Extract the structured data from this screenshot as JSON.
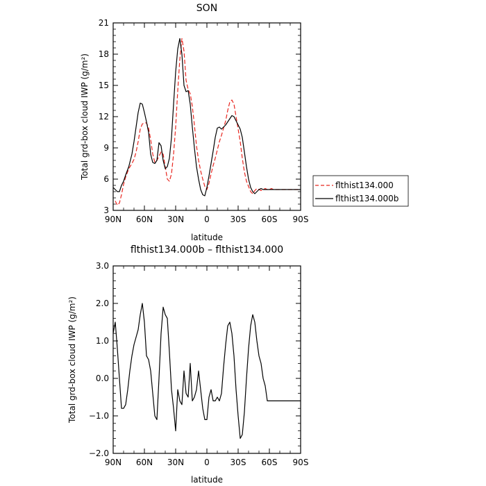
{
  "colors": {
    "series_a": "#e8261f",
    "series_b": "#000000"
  },
  "chart_data": [
    {
      "type": "line",
      "title": "SON",
      "xlabel": "latitude",
      "ylabel": "Total grd-box cloud IWP (g/m²)",
      "xlim": [
        90,
        -90
      ],
      "ylim": [
        3,
        21
      ],
      "yticks": [
        "3",
        "6",
        "9",
        "12",
        "15",
        "18",
        "21"
      ],
      "xticks": [
        "90N",
        "60N",
        "30N",
        "0",
        "30S",
        "60S",
        "90S"
      ],
      "grid": false,
      "legend_position": "right",
      "legend": [
        "flthist134.000",
        "flthist134.000b"
      ],
      "series": [
        {
          "name": "flthist134.000",
          "style": "dashed",
          "color": "#e8261f",
          "x": [
            88,
            86,
            84,
            82,
            80,
            78,
            75,
            72,
            70,
            68,
            66,
            64,
            62,
            60,
            58,
            56,
            54,
            52,
            50,
            48,
            46,
            44,
            42,
            40,
            38,
            36,
            34,
            32,
            30,
            28,
            26,
            24,
            22,
            20,
            18,
            16,
            14,
            12,
            10,
            8,
            6,
            4,
            2,
            0,
            -2,
            -4,
            -6,
            -8,
            -10,
            -12,
            -14,
            -16,
            -18,
            -20,
            -22,
            -24,
            -26,
            -28,
            -30,
            -32,
            -34,
            -36,
            -38,
            -40,
            -42,
            -44,
            -46,
            -48,
            -50,
            -52,
            -54,
            -56,
            -58,
            -60,
            -62,
            -64,
            -66,
            -68,
            -70,
            -72,
            -74,
            -76,
            -78,
            -80,
            -82,
            -84,
            -86,
            -88
          ],
          "y": [
            3.9,
            3.5,
            3.7,
            4.5,
            5.5,
            6.2,
            7.0,
            7.5,
            7.9,
            8.6,
            9.6,
            10.8,
            11.3,
            11.4,
            11.4,
            10.9,
            9.8,
            8.4,
            7.6,
            7.8,
            8.2,
            8.6,
            8.4,
            7.2,
            6.0,
            5.8,
            6.5,
            8.4,
            11.0,
            14.5,
            17.5,
            19.5,
            18.3,
            15.5,
            14.6,
            14.2,
            13.0,
            11.2,
            9.2,
            7.8,
            6.8,
            6.0,
            5.3,
            5.0,
            5.6,
            6.5,
            7.3,
            8.0,
            8.8,
            9.6,
            10.2,
            10.9,
            11.6,
            12.6,
            13.4,
            13.6,
            13.2,
            12.0,
            10.8,
            9.6,
            8.0,
            6.7,
            5.8,
            5.3,
            4.8,
            4.6,
            4.9,
            5.1,
            5.0,
            4.9,
            5.0,
            5.1,
            5.0,
            5.0,
            5.1,
            5.0,
            5.0,
            5.0,
            5.0,
            5.0,
            5.0,
            5.0,
            5.0,
            5.0,
            5.0,
            5.0,
            5.0,
            5.0
          ]
        },
        {
          "name": "flthist134.000b",
          "style": "solid",
          "color": "#000000",
          "x": [
            90,
            88,
            86,
            84,
            82,
            80,
            78,
            75,
            72,
            70,
            68,
            66,
            64,
            62,
            60,
            58,
            56,
            54,
            52,
            50,
            48,
            46,
            44,
            42,
            40,
            38,
            36,
            34,
            32,
            30,
            28,
            26,
            24,
            22,
            20,
            18,
            16,
            14,
            12,
            10,
            8,
            6,
            4,
            2,
            0,
            -2,
            -4,
            -6,
            -8,
            -10,
            -12,
            -14,
            -16,
            -18,
            -20,
            -22,
            -24,
            -26,
            -28,
            -30,
            -32,
            -34,
            -36,
            -38,
            -40,
            -42,
            -44,
            -46,
            -48,
            -50,
            -52,
            -54,
            -56,
            -58,
            -60,
            -62,
            -64,
            -66,
            -68,
            -70,
            -72,
            -74,
            -76,
            -78,
            -80,
            -82,
            -84,
            -86,
            -88,
            -90
          ],
          "y": [
            5.2,
            5.0,
            4.8,
            4.8,
            5.4,
            5.8,
            6.4,
            7.2,
            8.4,
            9.6,
            11.0,
            12.4,
            13.3,
            13.2,
            12.4,
            11.5,
            10.5,
            8.4,
            7.6,
            7.5,
            7.8,
            9.5,
            9.2,
            7.8,
            7.0,
            7.2,
            8.0,
            10.0,
            13.2,
            16.3,
            18.5,
            19.5,
            18.0,
            15.0,
            14.4,
            14.5,
            13.2,
            11.0,
            9.0,
            7.2,
            6.0,
            5.0,
            4.5,
            4.4,
            5.2,
            6.3,
            7.5,
            8.7,
            10.0,
            10.9,
            11.0,
            10.8,
            11.0,
            11.2,
            11.5,
            11.8,
            12.1,
            12.0,
            11.6,
            11.2,
            10.8,
            10.0,
            8.6,
            7.2,
            6.0,
            5.2,
            4.8,
            4.6,
            4.8,
            5.0,
            5.1,
            5.0,
            5.0,
            5.0,
            5.0,
            5.0,
            5.0,
            5.0,
            5.0,
            5.0,
            5.0,
            5.0,
            5.0,
            5.0,
            5.0,
            5.0,
            5.0,
            5.0,
            5.0,
            5.0
          ]
        }
      ]
    },
    {
      "type": "line",
      "title": "flthist134.000b – flthist134.000",
      "xlabel": "latitude",
      "ylabel": "Total grd-box cloud IWP (g/m²)",
      "xlim": [
        90,
        -90
      ],
      "ylim": [
        -2.0,
        3.0
      ],
      "yticks": [
        "−2.0",
        "−1.0",
        "0.0",
        "1.0",
        "2.0",
        "3.0"
      ],
      "xticks": [
        "90N",
        "60N",
        "30N",
        "0",
        "30S",
        "60S",
        "90S"
      ],
      "grid": false,
      "series": [
        {
          "color": "#000000",
          "x": [
            90,
            88,
            86,
            84,
            82,
            80,
            78,
            76,
            74,
            72,
            70,
            68,
            66,
            64,
            62,
            60,
            58,
            56,
            54,
            52,
            50,
            48,
            46,
            44,
            42,
            40,
            38,
            36,
            34,
            32,
            30,
            28,
            26,
            24,
            22,
            20,
            18,
            16,
            14,
            12,
            10,
            8,
            6,
            4,
            2,
            0,
            -2,
            -4,
            -6,
            -8,
            -10,
            -12,
            -14,
            -16,
            -18,
            -20,
            -22,
            -24,
            -26,
            -28,
            -30,
            -32,
            -34,
            -36,
            -38,
            -40,
            -42,
            -44,
            -46,
            -48,
            -50,
            -52,
            -54,
            -56,
            -58,
            -60,
            -62,
            -64,
            -66,
            -68,
            -70,
            -72,
            -74,
            -76,
            -78,
            -80,
            -82,
            -84,
            -86,
            -88,
            -90
          ],
          "y": [
            1.2,
            1.5,
            0.8,
            0.0,
            -0.8,
            -0.8,
            -0.7,
            -0.3,
            0.2,
            0.6,
            0.9,
            1.1,
            1.3,
            1.7,
            2.0,
            1.5,
            0.6,
            0.5,
            0.2,
            -0.4,
            -1.0,
            -1.1,
            0.0,
            1.2,
            1.9,
            1.7,
            1.6,
            0.7,
            -0.3,
            -0.8,
            -1.4,
            -0.3,
            -0.6,
            -0.7,
            0.2,
            -0.4,
            -0.5,
            0.4,
            -0.6,
            -0.5,
            -0.3,
            0.2,
            -0.3,
            -0.8,
            -1.1,
            -1.1,
            -0.5,
            -0.3,
            -0.6,
            -0.6,
            -0.5,
            -0.6,
            -0.4,
            0.3,
            0.9,
            1.4,
            1.5,
            1.2,
            0.6,
            -0.3,
            -1.0,
            -1.6,
            -1.5,
            -0.9,
            0.0,
            0.8,
            1.4,
            1.7,
            1.5,
            1.0,
            0.6,
            0.4,
            0.0,
            -0.2,
            -0.6,
            -0.6,
            -0.6,
            -0.6,
            -0.6,
            -0.6,
            -0.6,
            -0.6,
            -0.6,
            -0.6,
            -0.6,
            -0.6,
            -0.6,
            -0.6,
            -0.6,
            -0.6,
            -0.6
          ]
        }
      ]
    }
  ]
}
